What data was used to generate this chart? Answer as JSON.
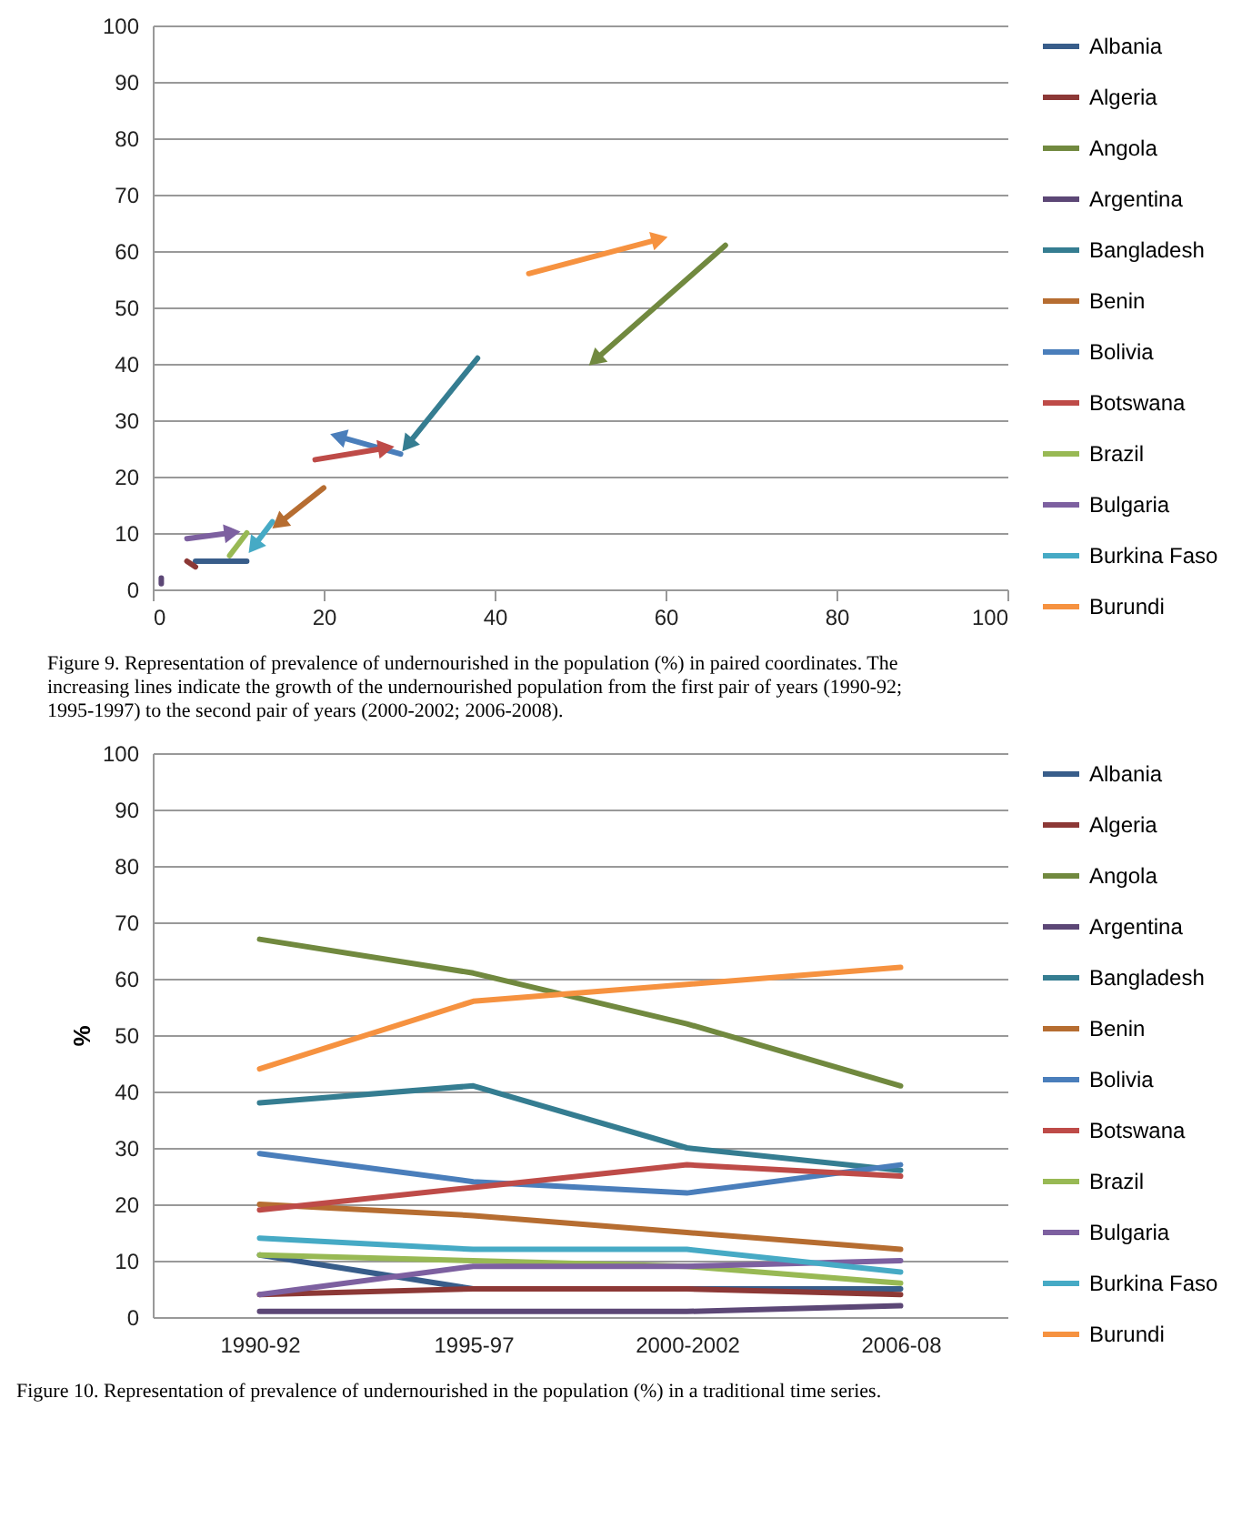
{
  "chart_data": [
    {
      "type": "line",
      "xlim": [
        0,
        100
      ],
      "xticks": [
        0,
        20,
        40,
        60,
        80,
        100
      ],
      "ylim": [
        0,
        100
      ],
      "yticks": [
        0,
        10,
        20,
        30,
        40,
        50,
        60,
        70,
        80,
        90,
        100
      ],
      "grid": "y",
      "legend": "right",
      "annotations": [
        "Figure 9.  Representation of prevalence of undernourished in the population (%) in paired coordinates. The increasing lines indicate the growth of the undernourished population from the first pair of years (1990-92; 1995-1997) to the second pair of years (2000-2002; 2006-2008)."
      ],
      "series": [
        {
          "name": "Albania",
          "color": "#385d8a",
          "x": [
            11,
            5
          ],
          "values": [
            5,
            5
          ],
          "marker": "none"
        },
        {
          "name": "Algeria",
          "color": "#8c3836",
          "x": [
            4,
            5
          ],
          "values": [
            5,
            4
          ],
          "marker": "none"
        },
        {
          "name": "Angola",
          "color": "#71893f",
          "x": [
            67,
            52
          ],
          "values": [
            61,
            41
          ],
          "marker": "triangle"
        },
        {
          "name": "Argentina",
          "color": "#5c4776",
          "x": [
            1,
            1
          ],
          "values": [
            1,
            2
          ],
          "marker": "none"
        },
        {
          "name": "Bangladesh",
          "color": "#357d91",
          "x": [
            38,
            30
          ],
          "values": [
            41,
            26
          ],
          "marker": "triangle"
        },
        {
          "name": "Benin",
          "color": "#b66d31",
          "x": [
            20,
            15
          ],
          "values": [
            18,
            12
          ],
          "marker": "triangle"
        },
        {
          "name": "Bolivia",
          "color": "#4a7ebb",
          "x": [
            29,
            22
          ],
          "values": [
            24,
            27
          ],
          "marker": "triangle"
        },
        {
          "name": "Botswana",
          "color": "#be4b48",
          "x": [
            19,
            27
          ],
          "values": [
            23,
            25
          ],
          "marker": "triangle"
        },
        {
          "name": "Brazil",
          "color": "#98b954",
          "x": [
            11,
            9
          ],
          "values": [
            10,
            6
          ],
          "marker": "none"
        },
        {
          "name": "Bulgaria",
          "color": "#7d60a0",
          "x": [
            4,
            9
          ],
          "values": [
            9,
            10
          ],
          "marker": "triangle"
        },
        {
          "name": "Burkina Faso",
          "color": "#46aac5",
          "x": [
            14,
            12
          ],
          "values": [
            12,
            8
          ],
          "marker": "triangle"
        },
        {
          "name": "Burundi",
          "color": "#f69240",
          "x": [
            44,
            59
          ],
          "values": [
            56,
            62
          ],
          "marker": "triangle"
        }
      ]
    },
    {
      "type": "line",
      "categories": [
        "1990-92",
        "1995-97",
        "2000-2002",
        "2006-08"
      ],
      "ylabel": "%",
      "ylim": [
        0,
        100
      ],
      "yticks": [
        0,
        10,
        20,
        30,
        40,
        50,
        60,
        70,
        80,
        90,
        100
      ],
      "grid": "y",
      "legend": "right",
      "annotations": [
        "Figure 10.  Representation of prevalence of undernourished in the population (%) in a traditional time series."
      ],
      "series": [
        {
          "name": "Albania",
          "color": "#385d8a",
          "values": [
            11,
            5,
            5,
            5
          ]
        },
        {
          "name": "Algeria",
          "color": "#8c3836",
          "values": [
            4,
            5,
            5,
            4
          ]
        },
        {
          "name": "Angola",
          "color": "#71893f",
          "values": [
            67,
            61,
            52,
            41
          ]
        },
        {
          "name": "Argentina",
          "color": "#5c4776",
          "values": [
            1,
            1,
            1,
            2
          ]
        },
        {
          "name": "Bangladesh",
          "color": "#357d91",
          "values": [
            38,
            41,
            30,
            26
          ]
        },
        {
          "name": "Benin",
          "color": "#b66d31",
          "values": [
            20,
            18,
            15,
            12
          ]
        },
        {
          "name": "Bolivia",
          "color": "#4a7ebb",
          "values": [
            29,
            24,
            22,
            27
          ]
        },
        {
          "name": "Botswana",
          "color": "#be4b48",
          "values": [
            19,
            23,
            27,
            25
          ]
        },
        {
          "name": "Brazil",
          "color": "#98b954",
          "values": [
            11,
            10,
            9,
            6
          ]
        },
        {
          "name": "Bulgaria",
          "color": "#7d60a0",
          "values": [
            4,
            9,
            9,
            10
          ]
        },
        {
          "name": "Burkina Faso",
          "color": "#46aac5",
          "values": [
            14,
            12,
            12,
            8
          ]
        },
        {
          "name": "Burundi",
          "color": "#f69240",
          "values": [
            44,
            56,
            59,
            62
          ]
        }
      ]
    }
  ]
}
